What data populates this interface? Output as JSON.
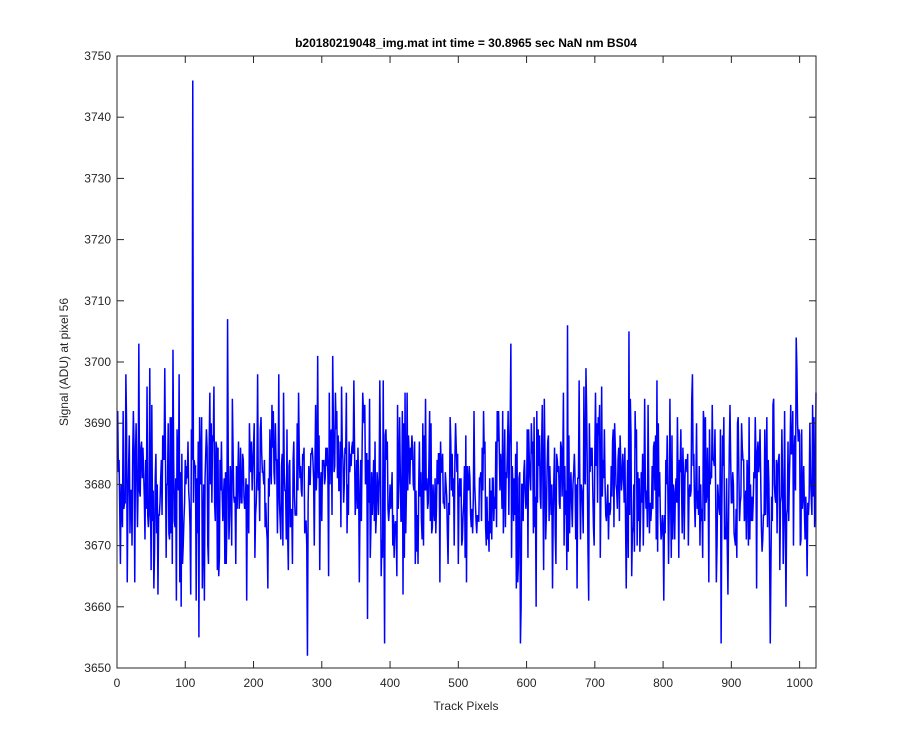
{
  "chart_data": {
    "type": "line",
    "title": "b20180219048_img.mat int time = 30.8965 sec  NaN nm BS04",
    "xlabel": "Track Pixels",
    "ylabel": "Signal (ADU) at pixel 56",
    "xlim": [
      0,
      1024
    ],
    "ylim": [
      3650,
      3750
    ],
    "xticks": [
      0,
      100,
      200,
      300,
      400,
      500,
      600,
      700,
      800,
      900,
      1000
    ],
    "yticks": [
      3650,
      3660,
      3670,
      3680,
      3690,
      3700,
      3710,
      3720,
      3730,
      3740,
      3750
    ],
    "grid": false,
    "legend": "none",
    "series": [
      {
        "color": "#0000ff",
        "x_start": 1,
        "x_step": 1,
        "count": 1024,
        "baseline": 3680,
        "noise_sd": 7.5,
        "key_points": [
          {
            "x": 5,
            "y": 3667
          },
          {
            "x": 13,
            "y": 3698
          },
          {
            "x": 32,
            "y": 3703
          },
          {
            "x": 82,
            "y": 3702
          },
          {
            "x": 94,
            "y": 3660
          },
          {
            "x": 111,
            "y": 3746
          },
          {
            "x": 120,
            "y": 3655
          },
          {
            "x": 162,
            "y": 3707
          },
          {
            "x": 279,
            "y": 3652
          },
          {
            "x": 392,
            "y": 3654
          },
          {
            "x": 577,
            "y": 3703
          },
          {
            "x": 591,
            "y": 3654
          },
          {
            "x": 660,
            "y": 3706
          },
          {
            "x": 750,
            "y": 3705
          },
          {
            "x": 885,
            "y": 3654
          },
          {
            "x": 957,
            "y": 3654
          },
          {
            "x": 995,
            "y": 3704
          },
          {
            "x": 1024,
            "y": 3695
          }
        ]
      }
    ]
  }
}
